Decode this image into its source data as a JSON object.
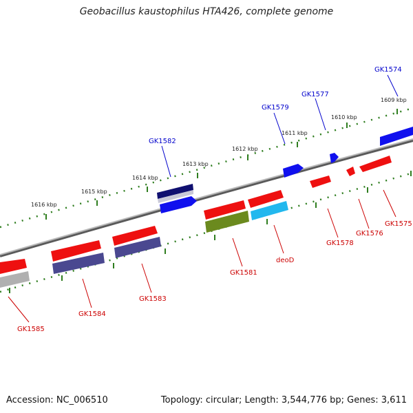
{
  "header": {
    "title": "Geobacillus kaustophilus HTA426, complete genome"
  },
  "footer": {
    "accession": "Accession: NC_006510",
    "summary": "Topology: circular; Length: 3,544,776 bp; Genes: 3,611"
  },
  "colors": {
    "forward_label": "#0000cc",
    "reverse_label": "#cc0000",
    "backbone": "#808080",
    "ticks": "#2e7d1e"
  },
  "ruler": {
    "ticks": [
      {
        "label": "1609 kbp"
      },
      {
        "label": "1610 kbp"
      },
      {
        "label": "1611 kbp"
      },
      {
        "label": "1612 kbp"
      },
      {
        "label": "1613 kbp"
      },
      {
        "label": "1614 kbp"
      },
      {
        "label": "1615 kbp"
      },
      {
        "label": "1616 kbp"
      }
    ]
  },
  "forward_genes": [
    {
      "label": "GK1574"
    },
    {
      "label": "GK1577"
    },
    {
      "label": "GK1579"
    },
    {
      "label": "GK1582"
    }
  ],
  "reverse_genes": [
    {
      "label": "GK1575"
    },
    {
      "label": "GK1576"
    },
    {
      "label": "GK1578"
    },
    {
      "label": "deoD"
    },
    {
      "label": "GK1581"
    },
    {
      "label": "GK1583"
    },
    {
      "label": "GK1584"
    },
    {
      "label": "GK1585"
    }
  ]
}
